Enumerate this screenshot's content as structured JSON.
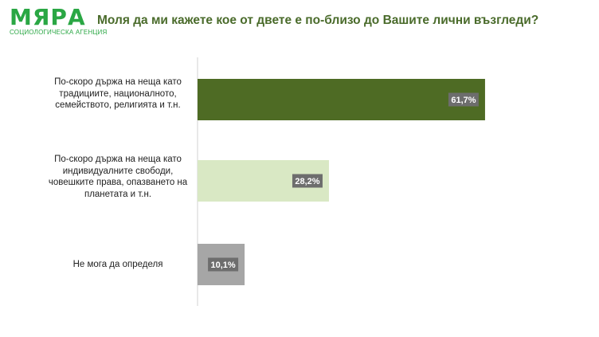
{
  "logo": {
    "word": "МЯРА",
    "tagline": "СОЦИОЛОГИЧЕСКА АГЕНЦИЯ"
  },
  "chart_data": {
    "type": "bar",
    "orientation": "horizontal",
    "title": "Моля да ми кажете кое от двете е по-близо до Вашите лични възгледи?",
    "categories": [
      "По-скоро държа на неща като традициите, националното, семейството, религията и т.н.",
      "По-скоро държа на неща като индивидуалните свободи, човешките права, опазването на планетата и т.н.",
      "Не мога да определя"
    ],
    "values": [
      61.7,
      28.2,
      10.1
    ],
    "value_labels": [
      "61,7%",
      "28,2%",
      "10,1%"
    ],
    "colors": [
      "#4e6b24",
      "#d9e8c4",
      "#a6a6a6"
    ],
    "xlim": [
      0,
      100
    ],
    "grid": false,
    "legend": "none"
  }
}
